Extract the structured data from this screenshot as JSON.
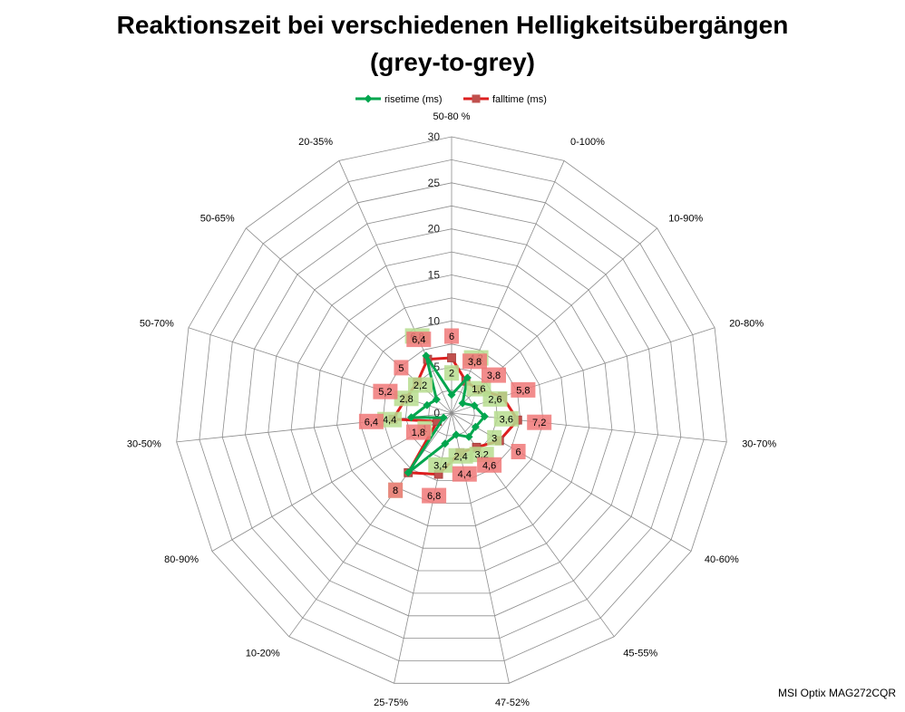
{
  "chart_data": {
    "type": "radar",
    "title": "Reaktionszeit bei verschiedenen Helligkeitsübergängen",
    "subtitle": "(grey-to-grey)",
    "categories": [
      "50-80 %",
      "0-100%",
      "10-90%",
      "20-80%",
      "30-70%",
      "40-60%",
      "45-55%",
      "47-52%",
      "25-75%",
      "10-20%",
      "80-90%",
      "30-50%",
      "50-70%",
      "50-65%",
      "20-35%"
    ],
    "radial_ticks": [
      "0",
      "5",
      "10",
      "15",
      "20",
      "25",
      "30"
    ],
    "rmax": 30,
    "grid_step": 2.5,
    "legend_position": "top",
    "series": [
      {
        "name": "risetime (ms)",
        "color": "#00a64e",
        "values": [
          2,
          4.2,
          1.6,
          2.6,
          3.6,
          3,
          3.2,
          2.4,
          3.4,
          8,
          1,
          4.4,
          2.8,
          2.2,
          6.8
        ]
      },
      {
        "name": "falltime (ms)",
        "color": "#dd1f1f",
        "values": [
          6,
          3.8,
          3.8,
          5.8,
          7.2,
          6,
          4.6,
          4.4,
          6.8,
          8,
          1.8,
          6.4,
          5.2,
          5,
          6.4
        ]
      }
    ],
    "value_labels": {
      "risetime": [
        "2",
        "4,2",
        "1,6",
        "2,6",
        "3,6",
        "3",
        "3,2",
        "2,4",
        "3,4",
        "8",
        "1",
        "4,4",
        "2,8",
        "2,2",
        "6,8"
      ],
      "falltime": [
        "6",
        "3,8",
        "3,8",
        "5,8",
        "7,2",
        "6",
        "4,6",
        "4,4",
        "6,8",
        "8",
        "1,8",
        "6,4",
        "5,2",
        "5",
        "6,4"
      ]
    }
  },
  "footnote": "MSI Optix MAG272CQR",
  "colors": {
    "grid": "#8c8c8c",
    "rise_label_bg": "#b7dd8f",
    "fall_label_bg": "#f07878"
  }
}
